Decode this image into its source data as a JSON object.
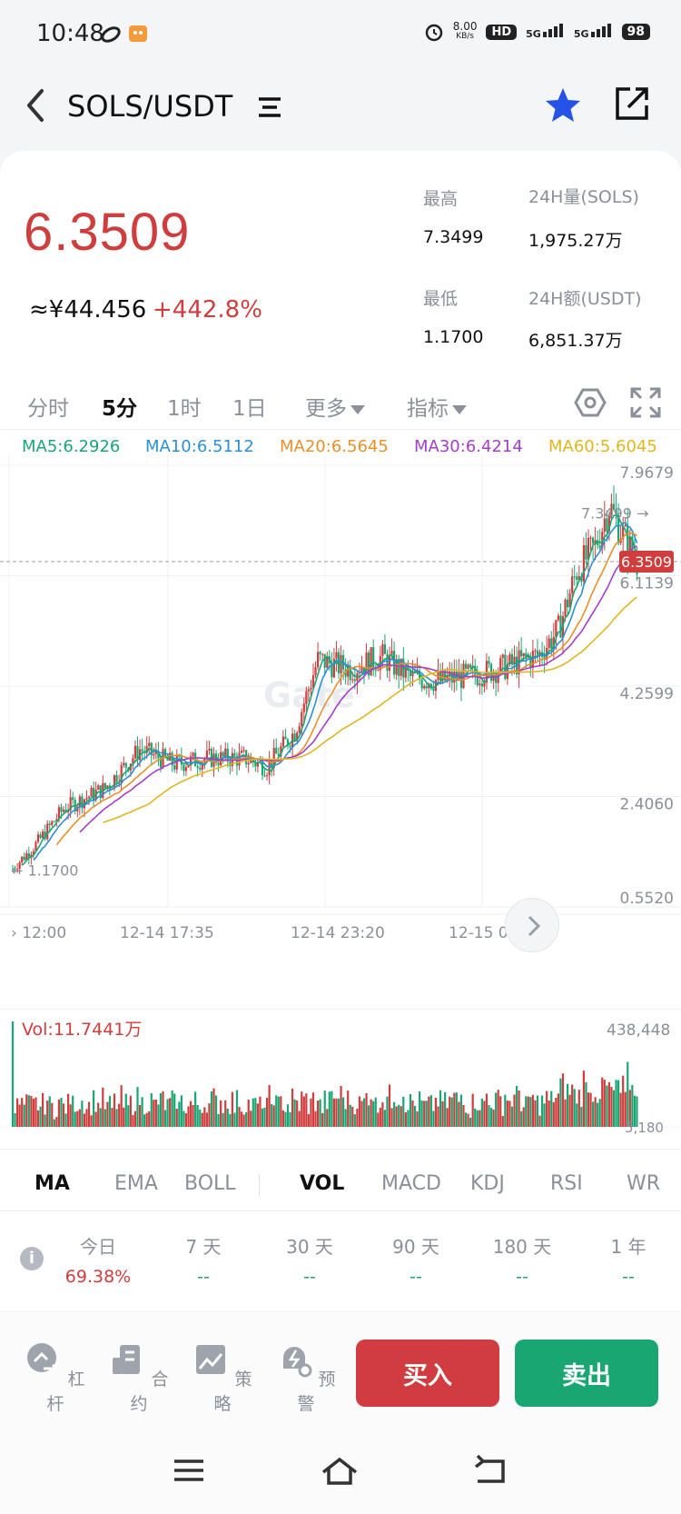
{
  "status": {
    "time": "10:48",
    "net_speed": "8.00",
    "net_unit": "KB/s",
    "hd": "HD",
    "sig1": "5G",
    "sig2": "5G",
    "battery": "98"
  },
  "header": {
    "pair": "SOLS/USDT"
  },
  "ticker": {
    "price": "6.3509",
    "cny": "≈¥44.456",
    "change": "+442.8%",
    "high_label": "最高",
    "high": "7.3499",
    "low_label": "最低",
    "low": "1.1700",
    "vol_label": "24H量(SOLS)",
    "vol": "1,975.27万",
    "amt_label": "24H额(USDT)",
    "amt": "6,851.37万",
    "up_color": "#cf3d3d",
    "down_color": "#1aa673"
  },
  "timeframes": [
    {
      "label": "分时"
    },
    {
      "label": "5分"
    },
    {
      "label": "1时"
    },
    {
      "label": "1日"
    },
    {
      "label": "更多"
    },
    {
      "label": "指标"
    }
  ],
  "ma_legend": [
    {
      "label": "MA5:6.2926",
      "color": "#1aa673"
    },
    {
      "label": "MA10:6.5112",
      "color": "#2b8fd6"
    },
    {
      "label": "MA20:6.5645",
      "color": "#e8902a"
    },
    {
      "label": "MA30:6.4214",
      "color": "#a43fc8"
    },
    {
      "label": "MA60:5.6045",
      "color": "#e0b620"
    }
  ],
  "chart_data": {
    "type": "candlestick",
    "y_ticks": [
      "7.9679",
      "6.1139",
      "4.2599",
      "2.4060",
      "0.5520"
    ],
    "x_ticks": [
      "12:00",
      "12-14 17:35",
      "12-14 23:20",
      "12-15 05:00"
    ],
    "ylim": [
      0.552,
      7.9679
    ],
    "high_marker": "7.3499 →",
    "low_marker": "← 1.1700",
    "last_price": "6.3509",
    "watermark": "Gate",
    "key_points": [
      [
        0,
        1.2
      ],
      [
        10,
        1.6
      ],
      [
        22,
        2.2
      ],
      [
        40,
        2.55
      ],
      [
        55,
        3.2
      ],
      [
        70,
        2.95
      ],
      [
        85,
        3.05
      ],
      [
        100,
        3.05
      ],
      [
        110,
        2.9
      ],
      [
        122,
        3.5
      ],
      [
        132,
        4.7
      ],
      [
        146,
        4.55
      ],
      [
        160,
        4.75
      ],
      [
        172,
        4.4
      ],
      [
        185,
        4.35
      ],
      [
        200,
        4.45
      ],
      [
        215,
        4.6
      ],
      [
        228,
        4.8
      ],
      [
        236,
        5.2
      ],
      [
        244,
        6.2
      ],
      [
        252,
        6.6
      ],
      [
        258,
        7.3
      ],
      [
        264,
        6.8
      ],
      [
        270,
        6.35
      ]
    ]
  },
  "volume": {
    "label": "Vol:11.7441万",
    "max": "438,448",
    "min": "5,180"
  },
  "indicators": [
    {
      "label": "MA"
    },
    {
      "label": "EMA"
    },
    {
      "label": "BOLL"
    },
    {
      "label": "VOL"
    },
    {
      "label": "MACD"
    },
    {
      "label": "KDJ"
    },
    {
      "label": "RSI"
    },
    {
      "label": "WR"
    }
  ],
  "returns": [
    {
      "label": "今日",
      "value": "69.38%"
    },
    {
      "label": "7 天",
      "value": "--"
    },
    {
      "label": "30 天",
      "value": "--"
    },
    {
      "label": "90 天",
      "value": "--"
    },
    {
      "label": "180 天",
      "value": "--"
    },
    {
      "label": "1 年",
      "value": "--"
    }
  ],
  "tools": [
    {
      "label": "杠杆"
    },
    {
      "label": "合约"
    },
    {
      "label": "策略"
    },
    {
      "label": "预警"
    }
  ],
  "actions": {
    "buy": "买入",
    "sell": "卖出"
  }
}
